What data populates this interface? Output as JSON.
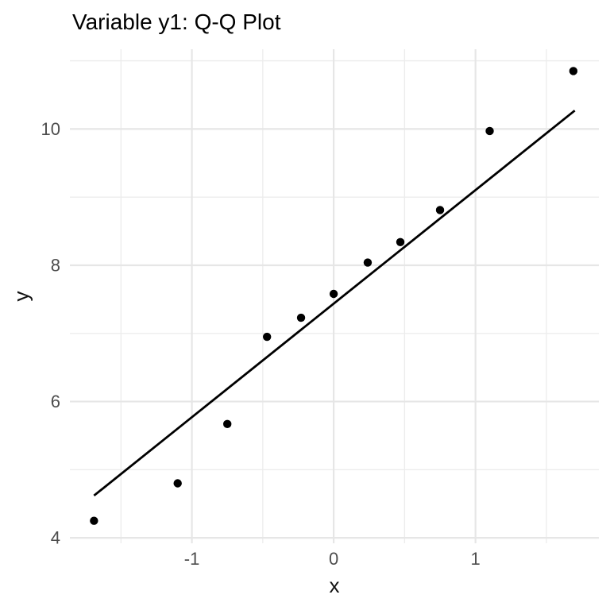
{
  "title": "Variable y1: Q-Q Plot",
  "chart_data": {
    "type": "scatter",
    "title": "Variable y1: Q-Q Plot",
    "xlabel": "x",
    "ylabel": "y",
    "xlim": [
      -1.86,
      1.87
    ],
    "ylim": [
      3.92,
      11.17
    ],
    "grid": {
      "show": true,
      "major_color": "#E6E6E6",
      "minor_color": "#ECECEC"
    },
    "legend_position": "none",
    "x_ticks": {
      "major": [
        -1,
        0,
        1
      ],
      "minor": [
        -1.5,
        -0.5,
        0.5,
        1.5
      ],
      "labels": [
        "-1",
        "0",
        "1"
      ]
    },
    "y_ticks": {
      "major": [
        4,
        6,
        8,
        10
      ],
      "minor": [
        5,
        7,
        9,
        11
      ],
      "labels": [
        "4",
        "6",
        "8",
        "10"
      ]
    },
    "series": [
      {
        "name": "sample-quantile-points",
        "type": "scatter",
        "color": "#000000",
        "points": [
          [
            -1.69,
            4.25
          ],
          [
            -1.1,
            4.8
          ],
          [
            -0.75,
            5.67
          ],
          [
            -0.47,
            6.95
          ],
          [
            -0.23,
            7.23
          ],
          [
            0.0,
            7.58
          ],
          [
            0.24,
            8.04
          ],
          [
            0.47,
            8.34
          ],
          [
            0.75,
            8.81
          ],
          [
            1.1,
            9.97
          ],
          [
            1.69,
            10.85
          ]
        ]
      },
      {
        "name": "qq-reference-line",
        "type": "line",
        "color": "#000000",
        "x": [
          -1.69,
          1.7
        ],
        "y": [
          4.62,
          10.27
        ]
      }
    ],
    "tick_label_color": "#4D4D4D",
    "axis_title_color": "#111111",
    "title_color": "#000000",
    "background_color": "#FFFFFF"
  }
}
